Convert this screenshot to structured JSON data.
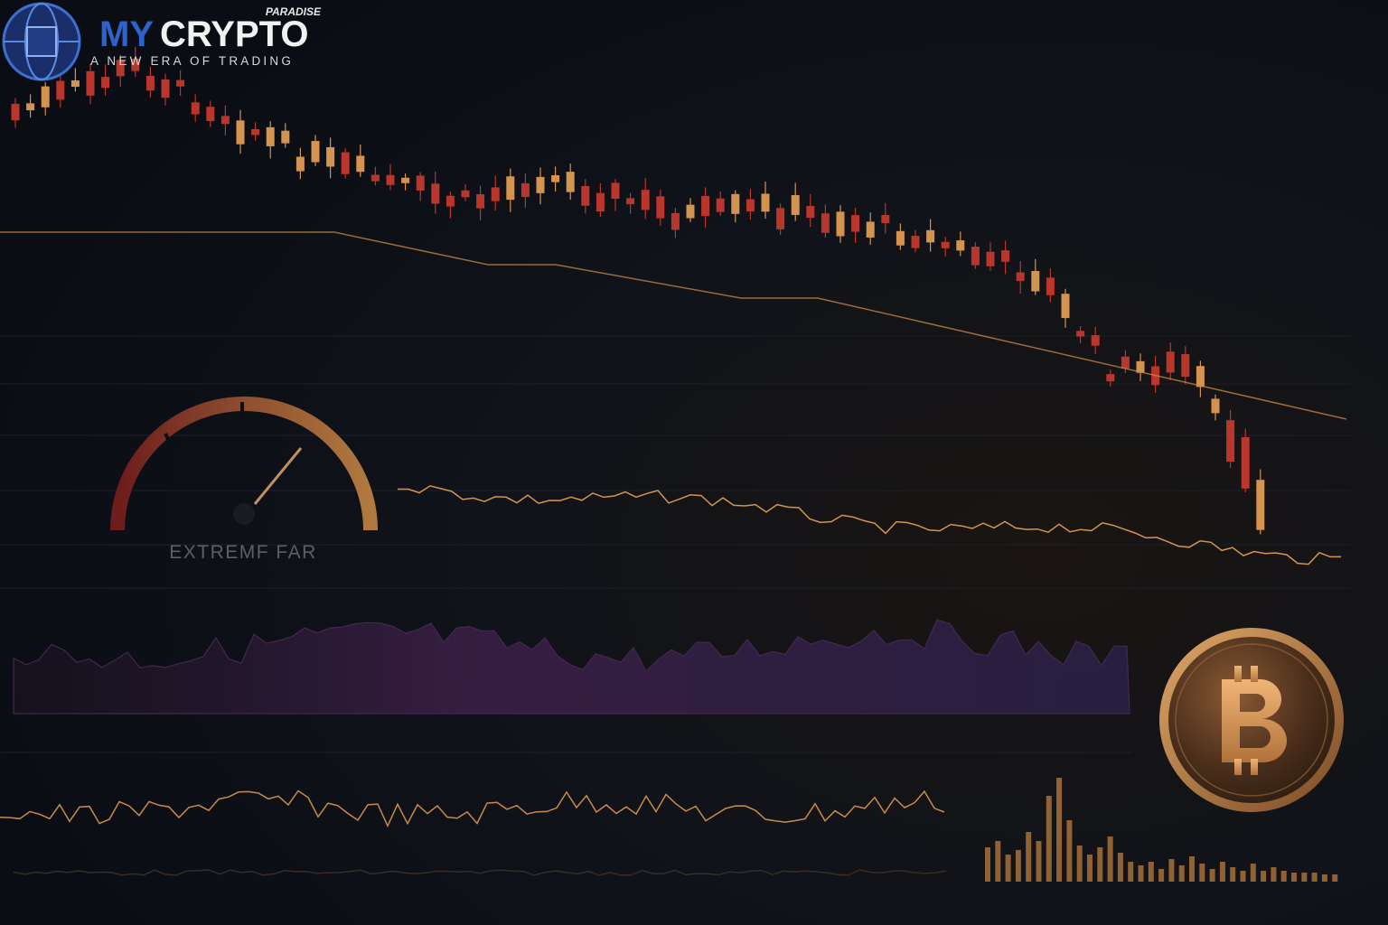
{
  "logo": {
    "brand_prefix": "MY",
    "brand_name": "CRYPTO",
    "badge": "PARADISE",
    "tagline": "A NEW ERA OF TRADING"
  },
  "gauge": {
    "label": "EXTREMF FAR"
  }
}
